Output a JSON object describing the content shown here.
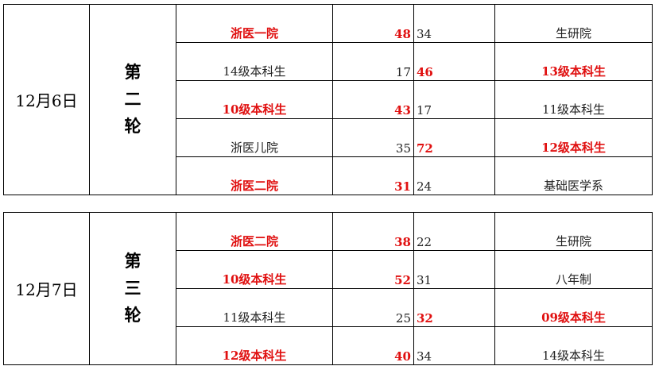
{
  "colors": {
    "winner": "#e01010",
    "text": "#222222"
  },
  "rounds": [
    {
      "date": "12月6日",
      "round": [
        "第",
        "二",
        "轮"
      ],
      "matches": [
        {
          "team_a": "浙医一院",
          "score_a": "48",
          "score_b": "34",
          "team_b": "生研院",
          "winner": "a"
        },
        {
          "team_a": "14级本科生",
          "score_a": "17",
          "score_b": "46",
          "team_b": "13级本科生",
          "winner": "b"
        },
        {
          "team_a": "10级本科生",
          "score_a": "43",
          "score_b": "17",
          "team_b": "11级本科生",
          "winner": "a"
        },
        {
          "team_a": "浙医儿院",
          "score_a": "35",
          "score_b": "72",
          "team_b": "12级本科生",
          "winner": "b"
        },
        {
          "team_a": "浙医二院",
          "score_a": "31",
          "score_b": "24",
          "team_b": "基础医学系",
          "winner": "a"
        }
      ]
    },
    {
      "date": "12月7日",
      "round": [
        "第",
        "三",
        "轮"
      ],
      "matches": [
        {
          "team_a": "浙医二院",
          "score_a": "38",
          "score_b": "22",
          "team_b": "生研院",
          "winner": "a"
        },
        {
          "team_a": "10级本科生",
          "score_a": "52",
          "score_b": "31",
          "team_b": "八年制",
          "winner": "a"
        },
        {
          "team_a": "11级本科生",
          "score_a": "25",
          "score_b": "32",
          "team_b": "09级本科生",
          "winner": "b"
        },
        {
          "team_a": "12级本科生",
          "score_a": "40",
          "score_b": "34",
          "team_b": "14级本科生",
          "winner": "a"
        }
      ]
    }
  ]
}
